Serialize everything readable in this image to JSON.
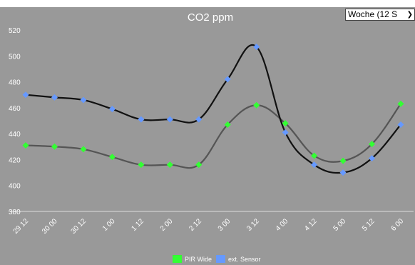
{
  "range_select": {
    "selected": "Woche (12 S",
    "chevron_icon": "chevron-down-icon"
  },
  "chart_data": {
    "type": "line",
    "title": "CO2 ppm",
    "categories": [
      "29 12",
      "30 00",
      "30 12",
      "1 00",
      "1 12",
      "2 00",
      "2 12",
      "3 00",
      "3 12",
      "4 00",
      "4 12",
      "5 00",
      "5 12",
      "6 00"
    ],
    "series": [
      {
        "name": "PIR Wide",
        "color": "#33ff33",
        "line_color": "#555555",
        "values": [
          431,
          430,
          428,
          422,
          416,
          416,
          416,
          447,
          462,
          448,
          423,
          419,
          432,
          463
        ]
      },
      {
        "name": "ext. Sensor",
        "color": "#6699ff",
        "line_color": "#111111",
        "values": [
          470,
          468,
          466,
          459,
          451,
          451,
          451,
          482,
          507,
          441,
          416,
          410,
          421,
          447
        ]
      }
    ],
    "yticks": [
      380,
      400,
      420,
      440,
      460,
      480,
      500,
      520
    ],
    "ylim": [
      380,
      520
    ],
    "grid": false,
    "legend_position": "bottom-center"
  }
}
